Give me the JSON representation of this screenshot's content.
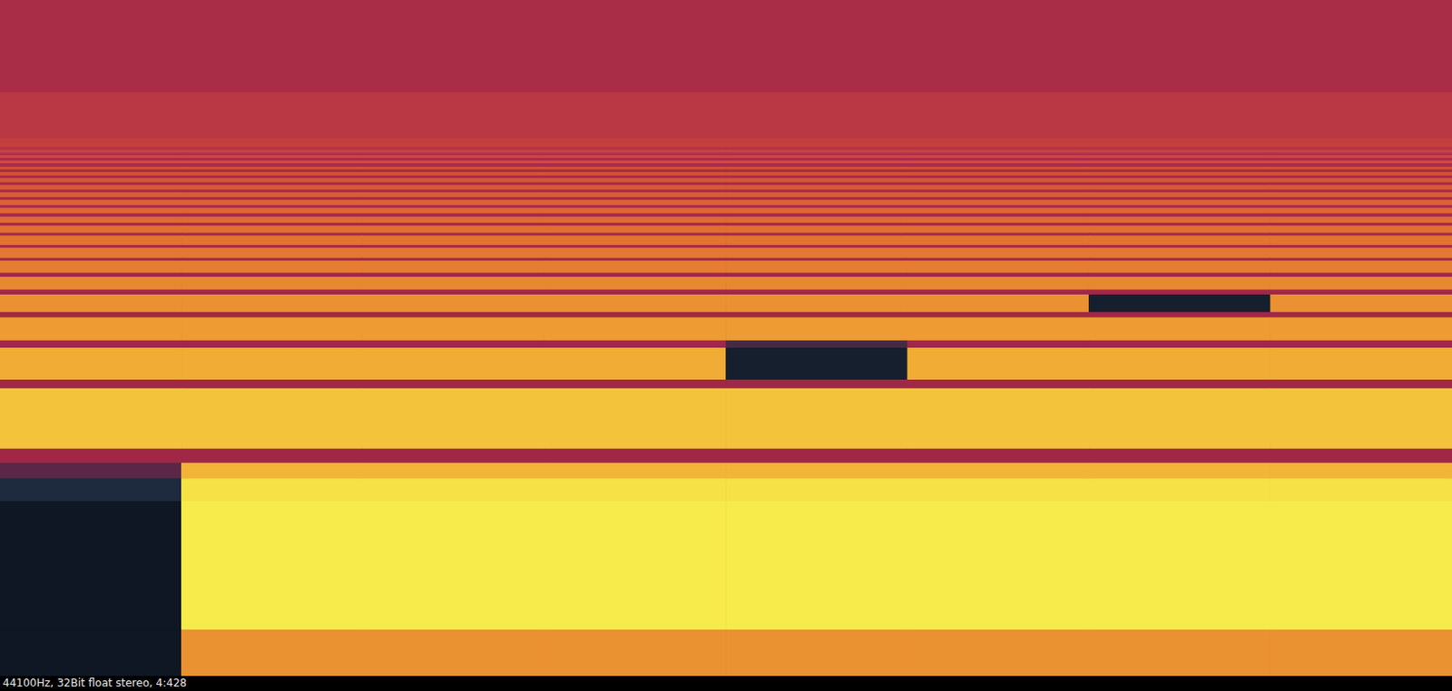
{
  "chart_data": {
    "type": "heatmap",
    "categories": [
      null,
      null,
      null,
      null,
      null,
      null,
      null,
      null
    ],
    "ylim": [
      0,
      100
    ],
    "tick_labels": false,
    "color_range": [
      0,
      100
    ],
    "frequency_edges": [
      0,
      6.8,
      25.8,
      29.2,
      31.5,
      33.6,
      42.5,
      43.8,
      48.5,
      49.6,
      53.0,
      53.8,
      56.4,
      57.1,
      59.0,
      59.6,
      61.4,
      61.8,
      63.3,
      63.7,
      65.1,
      65.5,
      66.6,
      67.0,
      67.9,
      68.4,
      69.2,
      69.6,
      70.4,
      70.8,
      71.5,
      71.9,
      72.6,
      73.0,
      73.6,
      74.0,
      74.5,
      74.9,
      75.3,
      75.8,
      76.2,
      76.6,
      77.0,
      77.4,
      77.8,
      78.2,
      79.5,
      86.3,
      100
    ],
    "cells": [
      [
        3,
        72,
        72,
        72,
        72,
        72,
        72,
        72
      ],
      [
        3,
        95,
        95,
        95,
        95,
        95,
        95,
        95
      ],
      [
        15,
        92,
        92,
        92,
        92,
        92,
        92,
        92
      ],
      [
        30,
        80,
        80,
        80,
        80,
        80,
        80,
        80
      ],
      [
        42,
        42,
        42,
        42,
        42,
        42,
        42,
        42
      ],
      [
        84,
        84,
        84,
        84,
        84,
        84,
        84,
        84
      ],
      [
        42,
        42,
        42,
        42,
        42,
        42,
        42,
        42
      ],
      [
        78,
        78,
        78,
        78,
        8,
        78,
        78,
        78
      ],
      [
        42,
        42,
        42,
        42,
        25,
        42,
        42,
        42
      ],
      [
        74,
        74,
        74,
        74,
        74,
        74,
        74,
        74
      ],
      [
        42,
        42,
        42,
        42,
        42,
        42,
        42,
        42
      ],
      [
        72,
        72,
        72,
        72,
        72,
        72,
        8,
        72
      ],
      [
        42,
        42,
        42,
        42,
        42,
        42,
        42,
        42
      ],
      [
        70,
        70,
        70,
        70,
        70,
        70,
        70,
        70
      ],
      [
        42,
        42,
        42,
        42,
        42,
        42,
        42,
        42
      ],
      [
        68,
        68,
        68,
        68,
        68,
        68,
        68,
        68
      ],
      [
        42,
        42,
        42,
        42,
        42,
        42,
        42,
        42
      ],
      [
        67,
        67,
        67,
        67,
        67,
        67,
        67,
        67
      ],
      [
        43,
        43,
        43,
        43,
        43,
        43,
        43,
        43
      ],
      [
        66,
        66,
        66,
        66,
        66,
        66,
        66,
        66
      ],
      [
        43,
        43,
        43,
        43,
        43,
        43,
        43,
        43
      ],
      [
        65,
        65,
        65,
        65,
        65,
        65,
        65,
        65
      ],
      [
        44,
        44,
        44,
        44,
        44,
        44,
        44,
        44
      ],
      [
        64,
        64,
        64,
        64,
        64,
        64,
        64,
        64
      ],
      [
        44,
        44,
        44,
        44,
        44,
        44,
        44,
        44
      ],
      [
        63,
        63,
        63,
        63,
        63,
        63,
        63,
        63
      ],
      [
        45,
        45,
        45,
        45,
        45,
        45,
        45,
        45
      ],
      [
        62,
        62,
        62,
        62,
        62,
        62,
        62,
        62
      ],
      [
        45,
        45,
        45,
        45,
        45,
        45,
        45,
        45
      ],
      [
        61,
        61,
        61,
        61,
        61,
        61,
        61,
        61
      ],
      [
        46,
        46,
        46,
        46,
        46,
        46,
        46,
        46
      ],
      [
        60,
        60,
        60,
        60,
        60,
        60,
        60,
        60
      ],
      [
        46,
        46,
        46,
        46,
        46,
        46,
        46,
        46
      ],
      [
        59,
        59,
        59,
        59,
        59,
        59,
        59,
        59
      ],
      [
        47,
        47,
        47,
        47,
        47,
        47,
        47,
        47
      ],
      [
        58,
        58,
        58,
        58,
        58,
        58,
        58,
        58
      ],
      [
        47,
        47,
        47,
        47,
        47,
        47,
        47,
        47
      ],
      [
        57,
        57,
        57,
        57,
        57,
        57,
        57,
        57
      ],
      [
        48,
        48,
        48,
        48,
        48,
        48,
        48,
        48
      ],
      [
        56,
        56,
        56,
        56,
        56,
        56,
        56,
        56
      ],
      [
        48,
        48,
        48,
        48,
        48,
        48,
        48,
        48
      ],
      [
        55,
        55,
        55,
        55,
        55,
        55,
        55,
        55
      ],
      [
        49,
        49,
        49,
        49,
        49,
        49,
        49,
        49
      ],
      [
        54,
        54,
        54,
        54,
        54,
        54,
        54,
        54
      ],
      [
        50,
        50,
        50,
        50,
        50,
        50,
        50,
        50
      ],
      [
        53,
        53,
        53,
        53,
        53,
        53,
        53,
        53
      ],
      [
        51,
        51,
        51,
        51,
        51,
        51,
        51,
        51
      ],
      [
        48,
        48,
        48,
        48,
        48,
        48,
        48,
        48
      ]
    ]
  },
  "status_bar": {
    "text": "44100Hz, 32Bit float stereo, 4:428"
  }
}
